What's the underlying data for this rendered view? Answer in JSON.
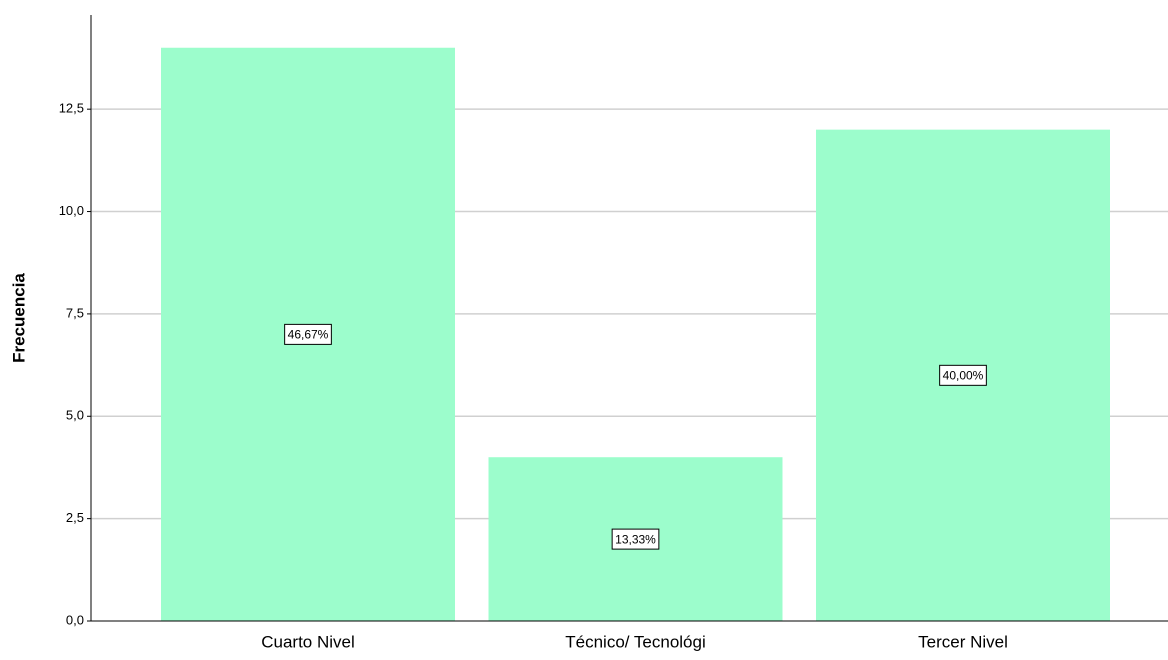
{
  "chart_data": {
    "type": "bar",
    "y_label": "Frecuencia",
    "categories": [
      "Cuarto Nivel",
      "Técnico/ Tecnológi",
      "Tercer Nivel"
    ],
    "values": [
      14,
      4,
      12
    ],
    "percentage_labels": [
      "46,67%",
      "13,33%",
      "40,00%"
    ],
    "color": "#9cfdcc",
    "ylim": [
      0,
      14.8
    ],
    "yticks": [
      {
        "value": 0,
        "label": "0,0"
      },
      {
        "value": 2.5,
        "label": "2,5"
      },
      {
        "value": 5,
        "label": "5,0"
      },
      {
        "value": 7.5,
        "label": "7,5"
      },
      {
        "value": 10,
        "label": "10,0"
      },
      {
        "value": 12.5,
        "label": "12,5"
      }
    ],
    "grid": true
  }
}
